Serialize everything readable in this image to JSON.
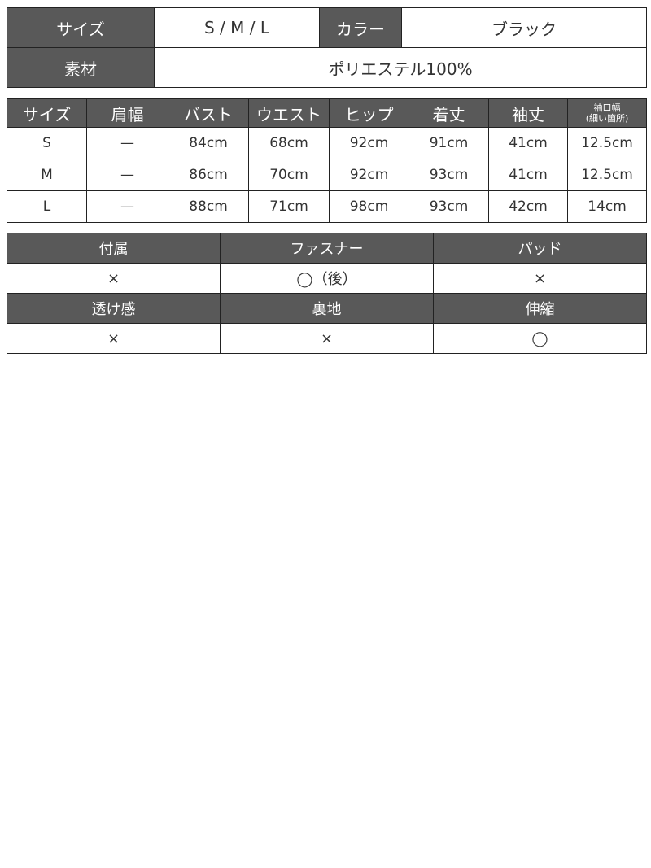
{
  "spec": {
    "size_label": "サイズ",
    "size_value": "S / M / L",
    "color_label": "カラー",
    "color_value": "ブラック",
    "material_label": "素材",
    "material_value": "ポリエステル100%"
  },
  "size_table": {
    "headers": [
      "サイズ",
      "肩幅",
      "バスト",
      "ウエスト",
      "ヒップ",
      "着丈",
      "袖丈"
    ],
    "cuff_header_line1": "袖口幅",
    "cuff_header_line2": "(細い箇所)",
    "rows": [
      [
        "S",
        "—",
        "84cm",
        "68cm",
        "92cm",
        "91cm",
        "41cm",
        "12.5cm"
      ],
      [
        "M",
        "—",
        "86cm",
        "70cm",
        "92cm",
        "93cm",
        "41cm",
        "12.5cm"
      ],
      [
        "L",
        "—",
        "88cm",
        "71cm",
        "98cm",
        "93cm",
        "42cm",
        "14cm"
      ]
    ]
  },
  "features": {
    "headers1": [
      "付属",
      "ファスナー",
      "パッド"
    ],
    "values1": [
      "×",
      "◯（後）",
      "×"
    ],
    "headers2": [
      "透け感",
      "裏地",
      "伸縮"
    ],
    "values2": [
      "×",
      "×",
      "◯"
    ]
  }
}
